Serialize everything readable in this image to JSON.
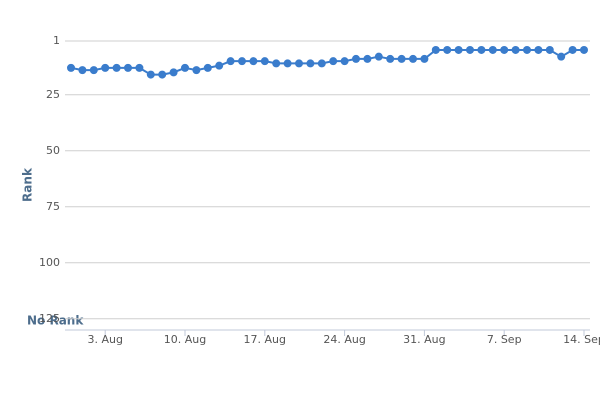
{
  "chart_data": {
    "type": "line",
    "y_label": "Rank",
    "annotation": "No Rank",
    "categories": [
      null,
      null,
      null,
      "3. Aug",
      null,
      null,
      null,
      null,
      null,
      null,
      "10. Aug",
      null,
      null,
      null,
      null,
      null,
      null,
      "17. Aug",
      null,
      null,
      null,
      null,
      null,
      null,
      "24. Aug",
      null,
      null,
      null,
      null,
      null,
      null,
      "31. Aug",
      null,
      null,
      null,
      null,
      null,
      null,
      "7. Sep",
      null,
      null,
      null,
      null,
      null,
      null,
      "14. Sep"
    ],
    "series": [
      {
        "name": "Rank",
        "color": "#3a7ccc",
        "values": [
          13,
          14,
          14,
          13,
          13,
          13,
          13,
          16,
          16,
          15,
          13,
          14,
          13,
          12,
          10,
          10,
          10,
          10,
          11,
          11,
          11,
          11,
          11,
          10,
          10,
          9,
          9,
          8,
          9,
          9,
          9,
          9,
          5,
          5,
          5,
          5,
          5,
          5,
          5,
          5,
          5,
          5,
          5,
          8,
          5,
          5
        ]
      }
    ],
    "ylim": [
      1,
      130
    ],
    "y_reversed": true,
    "yticks": [
      1,
      25,
      50,
      75,
      100,
      125
    ],
    "grid": true
  }
}
